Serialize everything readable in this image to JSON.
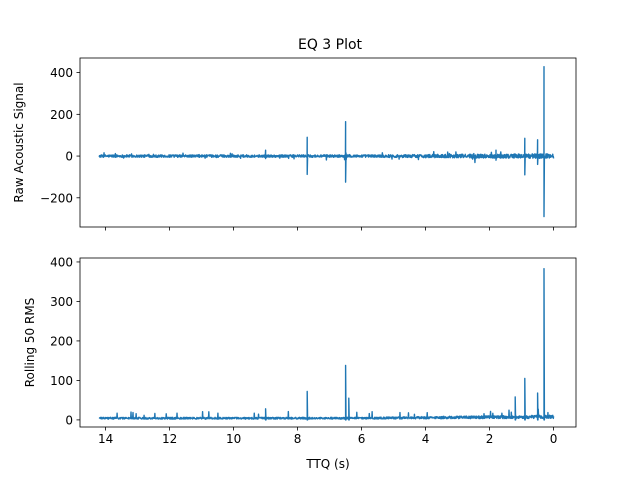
{
  "chart_data": [
    {
      "type": "line",
      "title": "EQ 3 Plot",
      "xlabel": "",
      "ylabel": "Raw Acoustic Signal",
      "xlim": [
        14.8,
        -0.7
      ],
      "ylim": [
        -340,
        470
      ],
      "yticks": [
        -200,
        0,
        200,
        400
      ],
      "xticks": [
        14,
        12,
        10,
        8,
        6,
        4,
        2,
        0
      ],
      "x_tick_labels_visible": false,
      "color": "#1f77b4",
      "signal": {
        "x_start": 14.2,
        "x_end": 0.0,
        "baseline_amplitude": 6,
        "spikes": [
          {
            "x": 9.0,
            "min": -12,
            "max": 28
          },
          {
            "x": 7.7,
            "min": -88,
            "max": 90
          },
          {
            "x": 6.5,
            "min": -125,
            "max": 165
          },
          {
            "x": 1.8,
            "min": -20,
            "max": 28
          },
          {
            "x": 0.9,
            "min": -90,
            "max": 85
          },
          {
            "x": 0.5,
            "min": -40,
            "max": 78
          },
          {
            "x": 0.3,
            "min": -290,
            "max": 428
          }
        ]
      }
    },
    {
      "type": "line",
      "title": "",
      "xlabel": "TTQ (s)",
      "ylabel": "Rolling 50 RMS",
      "xlim": [
        14.8,
        -0.7
      ],
      "ylim": [
        -18,
        410
      ],
      "yticks": [
        0,
        100,
        200,
        300,
        400
      ],
      "xticks": [
        14,
        12,
        10,
        8,
        6,
        4,
        2,
        0
      ],
      "color": "#1f77b4",
      "signal": {
        "x_start": 14.2,
        "x_end": 0.0,
        "baseline_amplitude": 5,
        "spikes": [
          {
            "x": 9.0,
            "max": 28
          },
          {
            "x": 7.7,
            "max": 72
          },
          {
            "x": 6.5,
            "max": 138
          },
          {
            "x": 6.4,
            "max": 55
          },
          {
            "x": 1.2,
            "max": 58
          },
          {
            "x": 0.9,
            "max": 105
          },
          {
            "x": 0.5,
            "max": 68
          },
          {
            "x": 0.3,
            "max": 383
          }
        ]
      }
    }
  ]
}
